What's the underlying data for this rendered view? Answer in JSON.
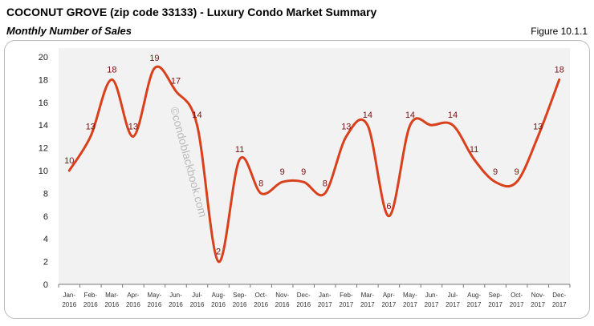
{
  "header": {
    "title": "COCONUT GROVE (zip code 33133) - Luxury Condo Market Summary",
    "subtitle": "Monthly Number of Sales",
    "figure": "Figure 10.1.1"
  },
  "watermark": "©condoblackbook.com",
  "chart_data": {
    "type": "line",
    "categories": [
      "Jan-2016",
      "Feb-2016",
      "Mar-2016",
      "Apr-2016",
      "May-2016",
      "Jun-2016",
      "Jul-2016",
      "Aug-2016",
      "Sep-2016",
      "Oct-2016",
      "Nov-2016",
      "Dec-2016",
      "Jan-2017",
      "Feb-2017",
      "Mar-2017",
      "Apr-2017",
      "May-2017",
      "Jun-2017",
      "Jul-2017",
      "Aug-2017",
      "Sep-2017",
      "Oct-2017",
      "Nov-2017",
      "Dec-2017"
    ],
    "values": [
      10,
      13,
      18,
      13,
      19,
      17,
      14,
      2,
      11,
      8,
      9,
      9,
      8,
      13,
      14,
      6,
      14,
      14,
      14,
      11,
      9,
      9,
      13,
      18
    ],
    "data_labels": [
      "10",
      "13",
      "18",
      "13",
      "19",
      "17",
      "14",
      "2",
      "11",
      "8",
      "9",
      "9",
      "8",
      "13",
      "14",
      "6",
      "14",
      "",
      "14",
      "11",
      "9",
      "9",
      "13",
      "18"
    ],
    "ylim": [
      0,
      20
    ],
    "yticks": [
      "0",
      "2",
      "4",
      "6",
      "8",
      "10",
      "12",
      "14",
      "16",
      "18",
      "20"
    ],
    "grid": false,
    "smooth": true,
    "colors": {
      "line": "#d9401c",
      "label": "#7b1010",
      "plot_bg": "#f2f2f2"
    }
  }
}
